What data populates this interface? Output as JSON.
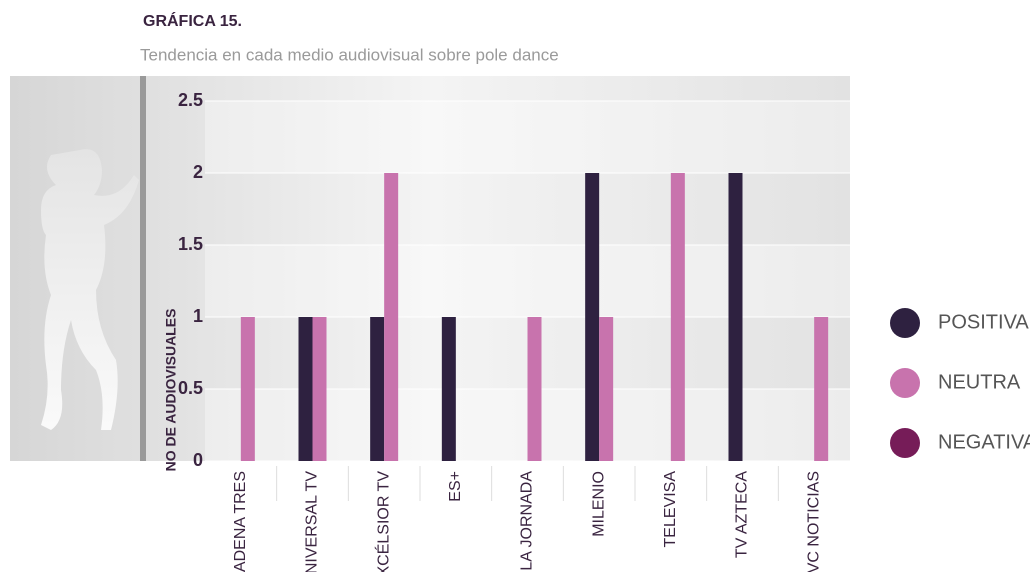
{
  "chart_data": {
    "type": "bar",
    "title": "GRÁFICA 15.",
    "subtitle": "Tendencia en cada medio audiovisual sobre pole dance",
    "y_label": "NO DE AUDIOVISUALES",
    "categories": [
      "CADENA TRES",
      "UNIVERSAL TV",
      "EXCÉLSIOR TV",
      "ES+",
      "LA JORNADA",
      "MILENIO",
      "TELEVISA",
      "TV AZTECA",
      "TVC NOTICIAS"
    ],
    "series": [
      {
        "name": "POSITIVA",
        "color": "#2e2140",
        "values": [
          0,
          1,
          1,
          1,
          0,
          2,
          0,
          2,
          0
        ]
      },
      {
        "name": "NEUTRA",
        "color": "#c873ad",
        "values": [
          1,
          1,
          2,
          0,
          1,
          1,
          2,
          0,
          1
        ]
      },
      {
        "name": "NEGATIVA",
        "color": "#761c58",
        "values": [
          0,
          0,
          0,
          0,
          0,
          0,
          0,
          0,
          0
        ]
      }
    ],
    "ylim": [
      0,
      2.5
    ],
    "yticks": [
      0,
      0.5,
      1,
      1.5,
      2,
      2.5
    ],
    "grid": true,
    "legend": "right"
  }
}
